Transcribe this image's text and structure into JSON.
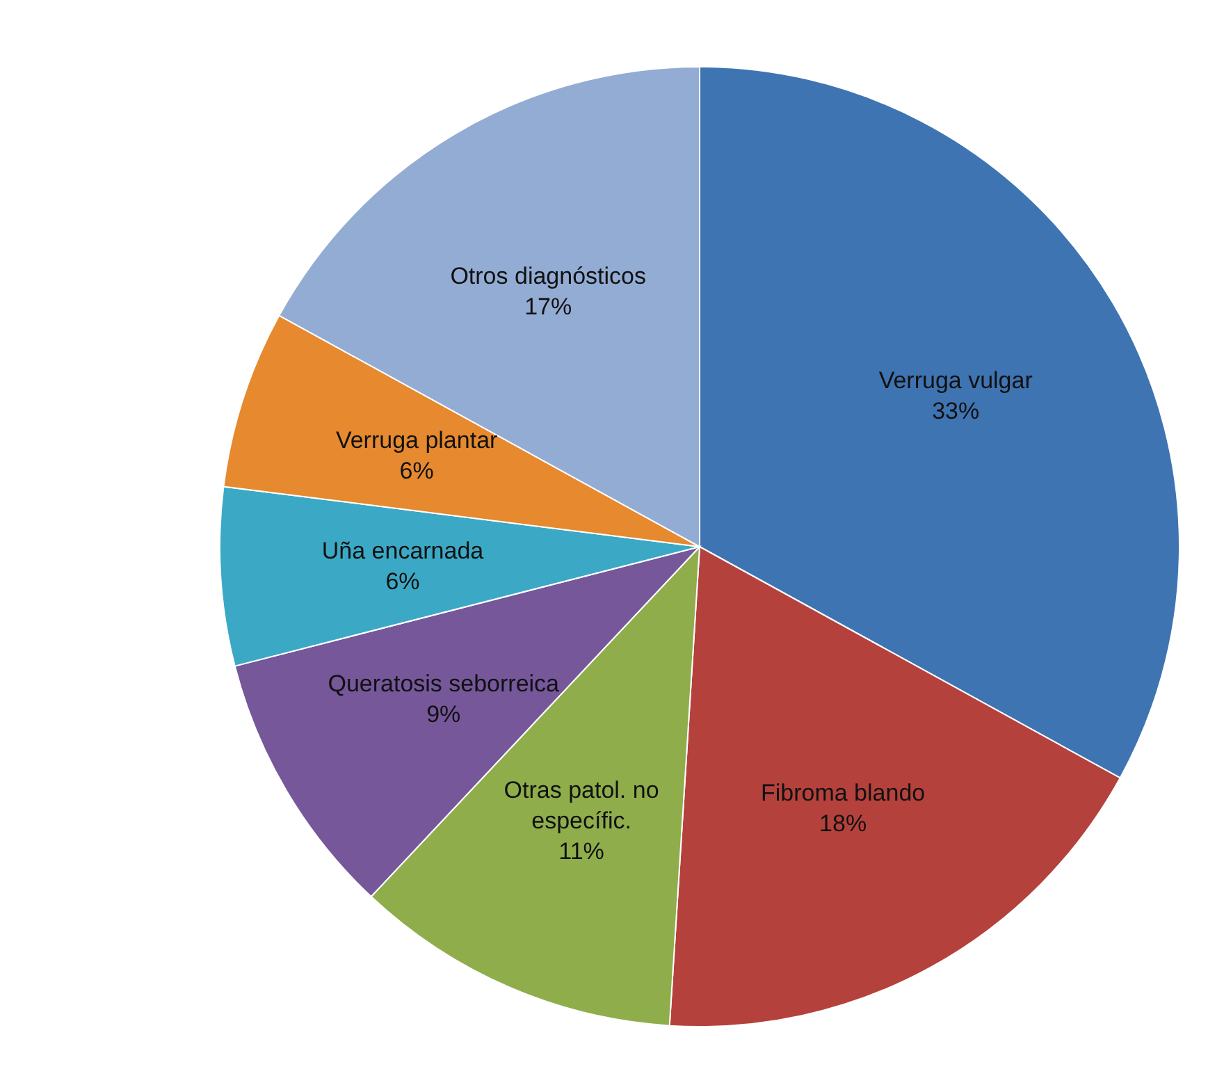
{
  "chart_data": {
    "type": "pie",
    "categories": [
      "Verruga vulgar",
      "Fibroma blando",
      "Otras patol. no específic.",
      "Queratosis seborreica",
      "Uña encarnada",
      "Verruga plantar",
      "Otros diagnósticos"
    ],
    "values": [
      33,
      18,
      11,
      9,
      6,
      6,
      17
    ],
    "colors": [
      "#3f74b3",
      "#b5413c",
      "#8fad4b",
      "#75579a",
      "#3ba9c5",
      "#e6892f",
      "#93acd4"
    ],
    "value_labels": [
      "33%",
      "18%",
      "11%",
      "9%",
      "6%",
      "6%",
      "17%"
    ],
    "legend": false
  }
}
